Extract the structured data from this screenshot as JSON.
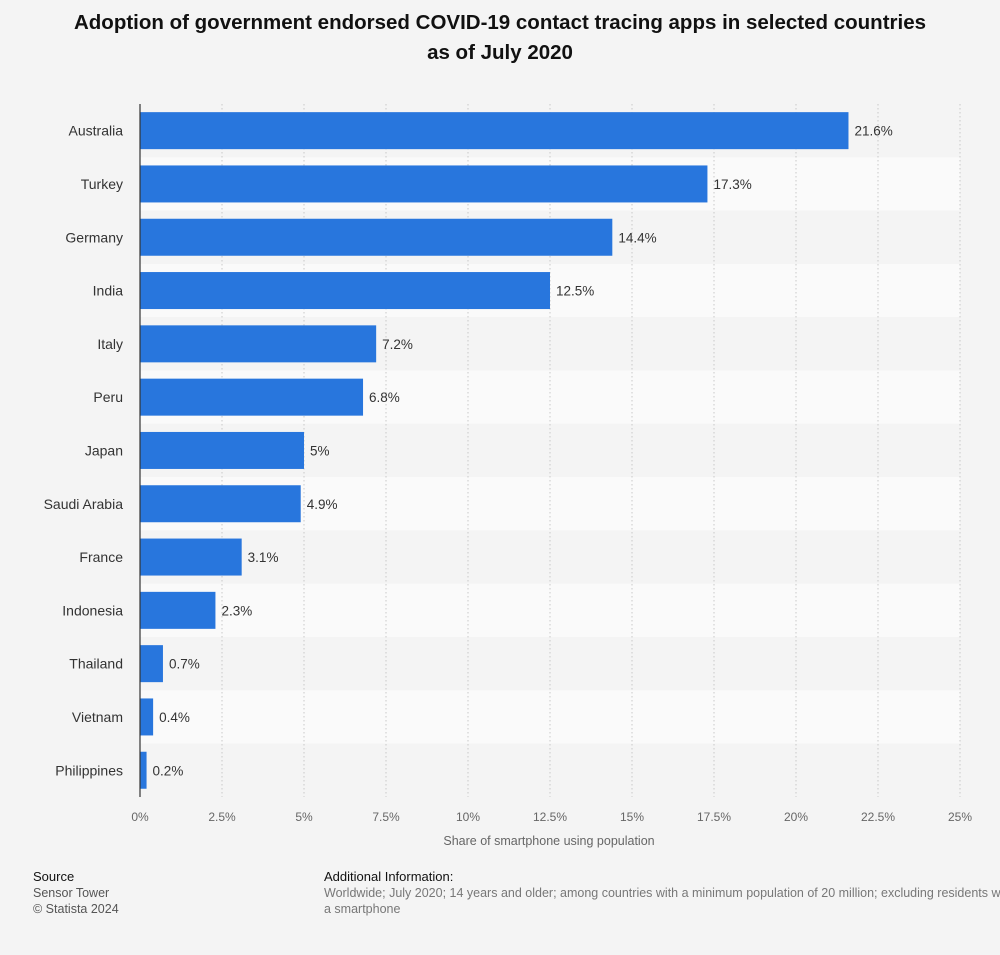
{
  "chart_data": {
    "type": "bar",
    "orientation": "horizontal",
    "title": "Adoption of government endorsed COVID-19 contact tracing apps in selected countries as of July 2020",
    "xlabel": "Share of smartphone using population",
    "ylabel": "",
    "xlim": [
      0,
      25
    ],
    "x_ticks": [
      0,
      2.5,
      5,
      7.5,
      10,
      12.5,
      15,
      17.5,
      20,
      22.5,
      25
    ],
    "x_tick_labels": [
      "0%",
      "2.5%",
      "5%",
      "7.5%",
      "10%",
      "12.5%",
      "15%",
      "17.5%",
      "20%",
      "22.5%",
      "25%"
    ],
    "categories": [
      "Australia",
      "Turkey",
      "Germany",
      "India",
      "Italy",
      "Peru",
      "Japan",
      "Saudi Arabia",
      "France",
      "Indonesia",
      "Thailand",
      "Vietnam",
      "Philippines"
    ],
    "values": [
      21.6,
      17.3,
      14.4,
      12.5,
      7.2,
      6.8,
      5,
      4.9,
      3.1,
      2.3,
      0.7,
      0.4,
      0.2
    ],
    "value_labels": [
      "21.6%",
      "17.3%",
      "14.4%",
      "12.5%",
      "7.2%",
      "6.8%",
      "5%",
      "4.9%",
      "3.1%",
      "2.3%",
      "0.7%",
      "0.4%",
      "0.2%"
    ],
    "bar_color": "#2876dd",
    "grid": true
  },
  "footer": {
    "source_heading": "Source",
    "source_name": "Sensor Tower",
    "copyright": "© Statista 2024",
    "info_heading": "Additional Information:",
    "info_text": "Worldwide; July 2020; 14 years and older; among countries with a minimum population of 20 million; excluding residents without a smartphone"
  }
}
